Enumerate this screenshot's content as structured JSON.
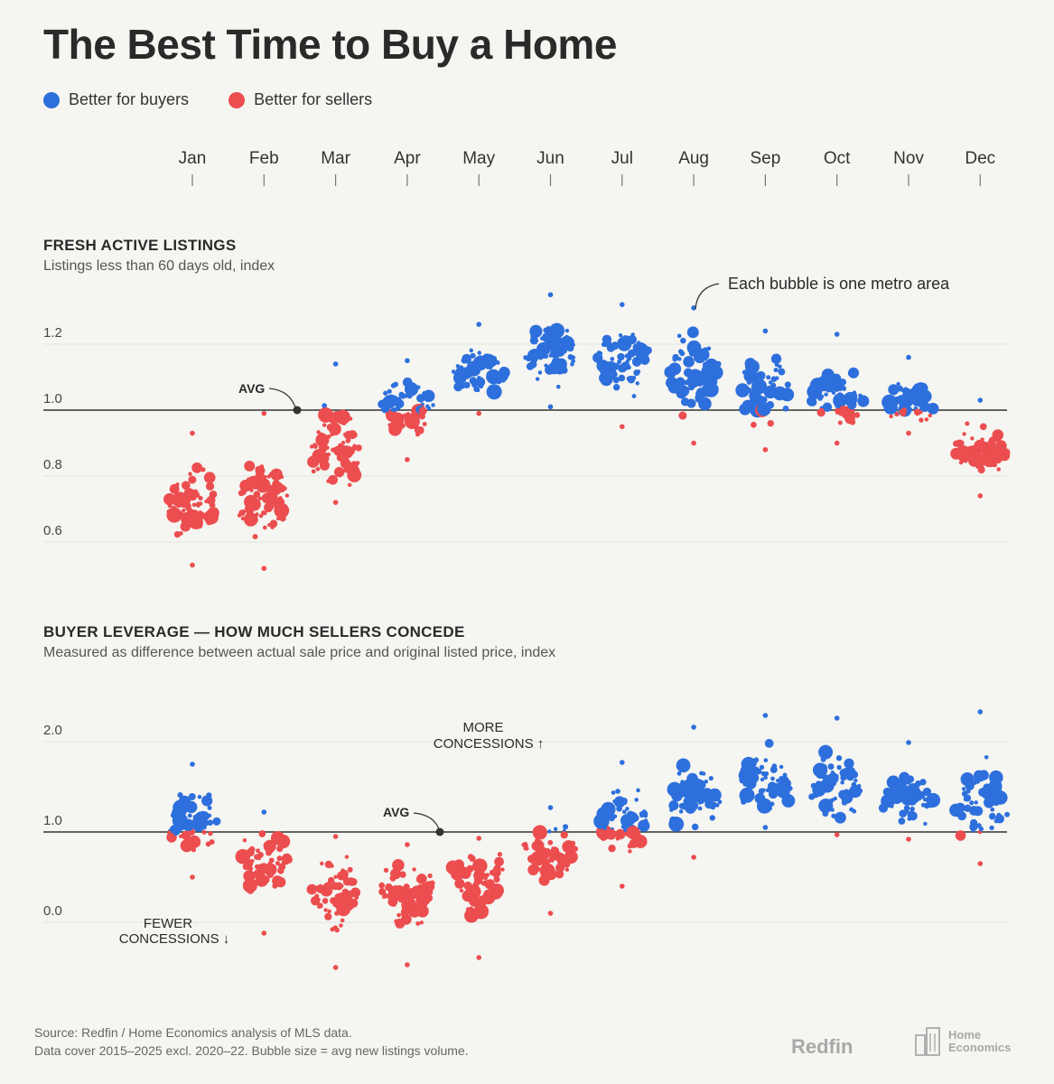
{
  "title": "The Best Time to Buy a Home",
  "legend": {
    "buyers": {
      "label": "Better for buyers",
      "color": "#2d6fdc"
    },
    "sellers": {
      "label": "Better for sellers",
      "color": "#ec4d4f"
    }
  },
  "months": [
    "Jan",
    "Feb",
    "Mar",
    "Apr",
    "May",
    "Jun",
    "Jul",
    "Aug",
    "Sep",
    "Oct",
    "Nov",
    "Dec"
  ],
  "sections": {
    "listings": {
      "title": "FRESH ACTIVE LISTINGS",
      "subtitle": "Listings less than 60 days old, index",
      "avg_label": "AVG",
      "annotation": "Each bubble is one metro area"
    },
    "leverage": {
      "title": "BUYER LEVERAGE — HOW MUCH SELLERS CONCEDE",
      "subtitle": "Measured as difference between actual sale price and original listed price, index",
      "avg_label": "AVG",
      "more_label_1": "MORE",
      "more_label_2": "CONCESSIONS ↑",
      "fewer_label_1": "FEWER",
      "fewer_label_2": "CONCESSIONS ↓"
    }
  },
  "footer": {
    "line1": "Source: Redfin / Home Economics analysis of MLS data.",
    "line2": "Data cover 2015–2025 excl. 2020–22. Bubble size = avg new listings volume."
  },
  "brands": {
    "redfin": "Redfin",
    "home_1": "Home",
    "home_2": "Economics"
  },
  "chart_data": [
    {
      "type": "scatter",
      "title": "FRESH ACTIVE LISTINGS",
      "subtitle": "Listings less than 60 days old, index",
      "categories": [
        "Jan",
        "Feb",
        "Mar",
        "Apr",
        "May",
        "Jun",
        "Jul",
        "Aug",
        "Sep",
        "Oct",
        "Nov",
        "Dec"
      ],
      "y_ticks": [
        "1.2",
        "1.0",
        "0.8",
        "0.6"
      ],
      "ylim": [
        0.55,
        1.35
      ],
      "average": 1.0,
      "distribution": [
        {
          "month": "Jan",
          "min": 0.53,
          "max": 0.93,
          "center": 0.73
        },
        {
          "month": "Feb",
          "min": 0.52,
          "max": 0.99,
          "center": 0.7
        },
        {
          "month": "Mar",
          "min": 0.72,
          "max": 1.14,
          "center": 0.86
        },
        {
          "month": "Apr",
          "min": 0.85,
          "max": 1.15,
          "center": 1.02
        },
        {
          "month": "May",
          "min": 0.99,
          "max": 1.26,
          "center": 1.11
        },
        {
          "month": "Jun",
          "min": 1.01,
          "max": 1.35,
          "center": 1.17
        },
        {
          "month": "Jul",
          "min": 0.95,
          "max": 1.32,
          "center": 1.17
        },
        {
          "month": "Aug",
          "min": 0.9,
          "max": 1.31,
          "center": 1.13
        },
        {
          "month": "Sep",
          "min": 0.88,
          "max": 1.24,
          "center": 1.06
        },
        {
          "month": "Oct",
          "min": 0.9,
          "max": 1.23,
          "center": 1.03
        },
        {
          "month": "Nov",
          "min": 0.93,
          "max": 1.16,
          "center": 1.0
        },
        {
          "month": "Dec",
          "min": 0.74,
          "max": 1.03,
          "center": 0.88
        }
      ]
    },
    {
      "type": "scatter",
      "title": "BUYER LEVERAGE — HOW MUCH SELLERS CONCEDE",
      "subtitle": "Measured as difference between actual sale price and original listed price, index",
      "categories": [
        "Jan",
        "Feb",
        "Mar",
        "Apr",
        "May",
        "Jun",
        "Jul",
        "Aug",
        "Sep",
        "Oct",
        "Nov",
        "Dec"
      ],
      "y_ticks": [
        "2.0",
        "1.0",
        "0.0"
      ],
      "ylim": [
        -0.5,
        2.3
      ],
      "average": 1.0,
      "distribution": [
        {
          "month": "Jan",
          "min": 0.5,
          "max": 1.75,
          "center": 1.1
        },
        {
          "month": "Feb",
          "min": -0.12,
          "max": 1.22,
          "center": 0.75
        },
        {
          "month": "Mar",
          "min": -0.5,
          "max": 0.95,
          "center": 0.45
        },
        {
          "month": "Apr",
          "min": -0.47,
          "max": 0.86,
          "center": 0.4
        },
        {
          "month": "May",
          "min": -0.39,
          "max": 0.93,
          "center": 0.6
        },
        {
          "month": "Jun",
          "min": 0.1,
          "max": 1.27,
          "center": 0.85
        },
        {
          "month": "Jul",
          "min": 0.4,
          "max": 1.77,
          "center": 1.1
        },
        {
          "month": "Aug",
          "min": 0.72,
          "max": 2.16,
          "center": 1.3
        },
        {
          "month": "Sep",
          "min": 1.05,
          "max": 2.29,
          "center": 1.45
        },
        {
          "month": "Oct",
          "min": 0.97,
          "max": 2.26,
          "center": 1.4
        },
        {
          "month": "Nov",
          "min": 0.92,
          "max": 1.99,
          "center": 1.3
        },
        {
          "month": "Dec",
          "min": 0.65,
          "max": 2.33,
          "center": 1.2
        }
      ]
    }
  ]
}
